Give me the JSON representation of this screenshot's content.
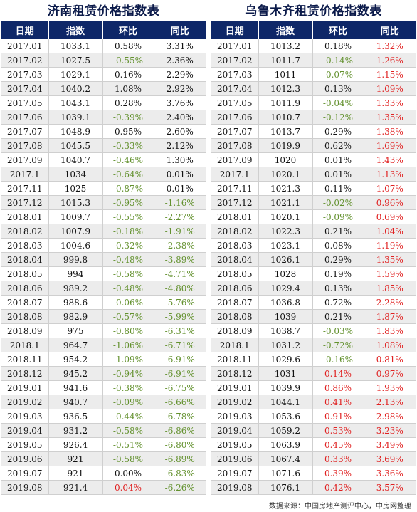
{
  "left": {
    "title": "济南租赁价格指数表",
    "headers": [
      "日期",
      "指数",
      "环比",
      "同比"
    ],
    "rows": [
      [
        "2017.01",
        "1033.1",
        "0.58%",
        "3.31%"
      ],
      [
        "2017.02",
        "1027.5",
        "-0.55%",
        "2.36%"
      ],
      [
        "2017.03",
        "1029.1",
        "0.16%",
        "2.29%"
      ],
      [
        "2017.04",
        "1040.2",
        "1.08%",
        "2.92%"
      ],
      [
        "2017.05",
        "1043.1",
        "0.28%",
        "3.76%"
      ],
      [
        "2017.06",
        "1039.1",
        "-0.39%",
        "2.40%"
      ],
      [
        "2017.07",
        "1048.9",
        "0.95%",
        "2.60%"
      ],
      [
        "2017.08",
        "1045.5",
        "-0.33%",
        "2.12%"
      ],
      [
        "2017.09",
        "1040.7",
        "-0.46%",
        "1.30%"
      ],
      [
        "2017.1",
        "1034",
        "-0.64%",
        "0.01%"
      ],
      [
        "2017.11",
        "1025",
        "-0.87%",
        "0.01%"
      ],
      [
        "2017.12",
        "1015.3",
        "-0.95%",
        "-1.16%"
      ],
      [
        "2018.01",
        "1009.7",
        "-0.55%",
        "-2.27%"
      ],
      [
        "2018.02",
        "1007.9",
        "-0.18%",
        "-1.91%"
      ],
      [
        "2018.03",
        "1004.6",
        "-0.32%",
        "-2.38%"
      ],
      [
        "2018.04",
        "999.8",
        "-0.48%",
        "-3.89%"
      ],
      [
        "2018.05",
        "994",
        "-0.58%",
        "-4.71%"
      ],
      [
        "2018.06",
        "989.2",
        "-0.48%",
        "-4.80%"
      ],
      [
        "2018.07",
        "988.6",
        "-0.06%",
        "-5.76%"
      ],
      [
        "2018.08",
        "982.9",
        "-0.57%",
        "-5.99%"
      ],
      [
        "2018.09",
        "975",
        "-0.80%",
        "-6.31%"
      ],
      [
        "2018.1",
        "964.7",
        "-1.06%",
        "-6.71%"
      ],
      [
        "2018.11",
        "954.2",
        "-1.09%",
        "-6.91%"
      ],
      [
        "2018.12",
        "945.2",
        "-0.94%",
        "-6.91%"
      ],
      [
        "2019.01",
        "941.6",
        "-0.38%",
        "-6.75%"
      ],
      [
        "2019.02",
        "940.7",
        "-0.09%",
        "-6.66%"
      ],
      [
        "2019.03",
        "936.5",
        "-0.44%",
        "-6.78%"
      ],
      [
        "2019.04",
        "931.2",
        "-0.58%",
        "-6.86%"
      ],
      [
        "2019.05",
        "926.4",
        "-0.51%",
        "-6.80%"
      ],
      [
        "2019.06",
        "921",
        "-0.58%",
        "-6.89%"
      ],
      [
        "2019.07",
        "921",
        "0.00%",
        "-6.83%"
      ],
      [
        "2019.08",
        "921.4",
        "0.04%",
        "-6.26%"
      ]
    ]
  },
  "right": {
    "title": "乌鲁木齐租赁价格指数表",
    "headers": [
      "日期",
      "指数",
      "环比",
      "同比"
    ],
    "rows": [
      [
        "2017.01",
        "1013.2",
        "0.18%",
        "1.32%"
      ],
      [
        "2017.02",
        "1011.7",
        "-0.14%",
        "1.26%"
      ],
      [
        "2017.03",
        "1011",
        "-0.07%",
        "1.15%"
      ],
      [
        "2017.04",
        "1012.3",
        "0.13%",
        "1.09%"
      ],
      [
        "2017.05",
        "1011.9",
        "-0.04%",
        "1.33%"
      ],
      [
        "2017.06",
        "1010.7",
        "-0.12%",
        "1.35%"
      ],
      [
        "2017.07",
        "1013.7",
        "0.29%",
        "1.38%"
      ],
      [
        "2017.08",
        "1019.9",
        "0.62%",
        "1.69%"
      ],
      [
        "2017.09",
        "1020",
        "0.01%",
        "1.43%"
      ],
      [
        "2017.1",
        "1020.1",
        "0.01%",
        "1.13%"
      ],
      [
        "2017.11",
        "1021.3",
        "0.11%",
        "1.07%"
      ],
      [
        "2017.12",
        "1021.1",
        "-0.02%",
        "0.96%"
      ],
      [
        "2018.01",
        "1020.1",
        "-0.09%",
        "0.69%"
      ],
      [
        "2018.02",
        "1022.3",
        "0.21%",
        "1.04%"
      ],
      [
        "2018.03",
        "1023.1",
        "0.08%",
        "1.19%"
      ],
      [
        "2018.04",
        "1026.1",
        "0.29%",
        "1.35%"
      ],
      [
        "2018.05",
        "1028",
        "0.19%",
        "1.59%"
      ],
      [
        "2018.06",
        "1029.4",
        "0.13%",
        "1.85%"
      ],
      [
        "2018.07",
        "1036.8",
        "0.72%",
        "2.28%"
      ],
      [
        "2018.08",
        "1039",
        "0.21%",
        "1.87%"
      ],
      [
        "2018.09",
        "1038.7",
        "-0.03%",
        "1.83%"
      ],
      [
        "2018.1",
        "1031.2",
        "-0.72%",
        "1.08%"
      ],
      [
        "2018.11",
        "1029.6",
        "-0.16%",
        "0.81%"
      ],
      [
        "2018.12",
        "1031",
        "0.14%",
        "0.97%"
      ],
      [
        "2019.01",
        "1039.9",
        "0.86%",
        "1.93%"
      ],
      [
        "2019.02",
        "1044.1",
        "0.41%",
        "2.13%"
      ],
      [
        "2019.03",
        "1053.6",
        "0.91%",
        "2.98%"
      ],
      [
        "2019.04",
        "1059.2",
        "0.53%",
        "3.23%"
      ],
      [
        "2019.05",
        "1063.9",
        "0.45%",
        "3.49%"
      ],
      [
        "2019.06",
        "1067.4",
        "0.33%",
        "3.69%"
      ],
      [
        "2019.07",
        "1071.6",
        "0.39%",
        "3.36%"
      ],
      [
        "2019.08",
        "1076.1",
        "0.42%",
        "3.57%"
      ]
    ]
  },
  "source": "数据来源：中国房地产测评中心，中房网整理",
  "colors": {
    "header_bg": "#0e2768",
    "negative": "#63912e",
    "positive_highlight": "#e02020"
  }
}
